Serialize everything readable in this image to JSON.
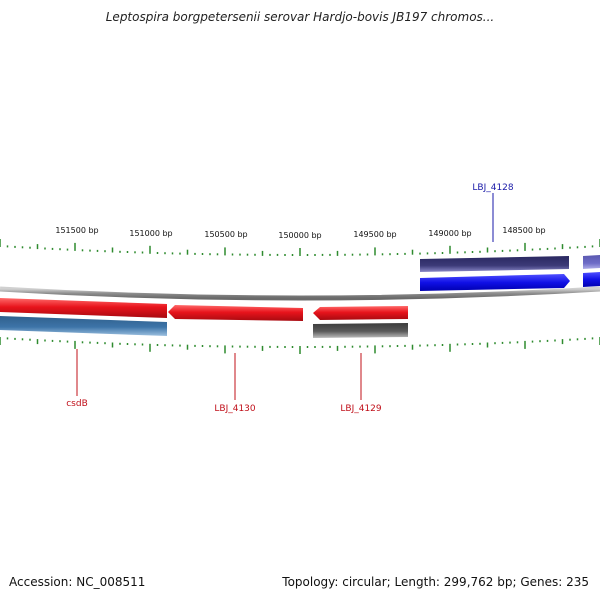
{
  "map": {
    "title": "Leptospira borgpetersenii serovar Hardjo-bovis JB197 chromos...",
    "accession": "Accession: NC_008511",
    "summary": "Topology: circular; Length: 299,762 bp; Genes: 235"
  },
  "scale": {
    "labels": [
      "151500 bp",
      "151000 bp",
      "150500 bp",
      "150000 bp",
      "149500 bp",
      "149000 bp",
      "148500 bp"
    ],
    "unit": "bp"
  },
  "colors": {
    "tick": "#2e8b2e",
    "backbone": "#8c8c8c",
    "forward_red": "#e8141c",
    "reverse_blue": "#3d74a8",
    "navy": "#3c3a78",
    "bright_blue": "#1010e6",
    "grey": "#5a5a5a",
    "label_red": "#c0101a",
    "label_blue": "#1a1aa8"
  },
  "genes": [
    {
      "label": "LBJ_4128",
      "color": "blue"
    },
    {
      "label": "csdB",
      "color": "red"
    },
    {
      "label": "LBJ_4130",
      "color": "red"
    },
    {
      "label": "LBJ_4129",
      "color": "red"
    }
  ]
}
